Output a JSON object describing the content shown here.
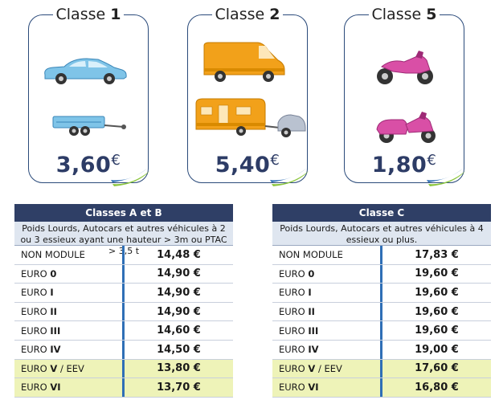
{
  "classes": [
    {
      "title_prefix": "Classe ",
      "title_number": "1",
      "price_main": "3,60",
      "price_currency": "€",
      "icons": [
        "car-icon",
        "trailer-icon"
      ]
    },
    {
      "title_prefix": "Classe ",
      "title_number": "2",
      "price_main": "5,40",
      "price_currency": "€",
      "icons": [
        "van-icon",
        "caravan-icon"
      ]
    },
    {
      "title_prefix": "Classe ",
      "title_number": "5",
      "price_main": "1,80",
      "price_currency": "€",
      "icons": [
        "motorcycle-icon",
        "motorcycle-sidecar-icon"
      ]
    }
  ],
  "table_ab": {
    "title": "Classes A et B",
    "description": "Poids Lourds, Autocars et autres véhicules à 2 ou 3 essieux ayant une hauteur > 3m ou PTAC > 3,5 t",
    "rows": [
      {
        "prefix": "NON MODULE",
        "suffix": "",
        "value": "14,48 €",
        "highlight": false
      },
      {
        "prefix": "EURO ",
        "suffix": "0",
        "value": "14,90 €",
        "highlight": false
      },
      {
        "prefix": "EURO ",
        "suffix": "I",
        "value": "14,90 €",
        "highlight": false
      },
      {
        "prefix": "EURO ",
        "suffix": "II",
        "value": "14,90 €",
        "highlight": false
      },
      {
        "prefix": "EURO ",
        "suffix": "III",
        "value": "14,60 €",
        "highlight": false
      },
      {
        "prefix": "EURO ",
        "suffix": "IV",
        "value": "14,50 €",
        "highlight": false
      },
      {
        "prefix": "EURO ",
        "suffix": "V",
        "extra": " / EEV",
        "value": "13,80 €",
        "highlight": true
      },
      {
        "prefix": "EURO ",
        "suffix": "VI",
        "value": "13,70 €",
        "highlight": true
      }
    ]
  },
  "table_c": {
    "title": "Classe C",
    "description": "Poids Lourds, Autocars et autres véhicules à 4 essieux ou plus.",
    "rows": [
      {
        "prefix": "NON MODULE",
        "suffix": "",
        "value": "17,83 €",
        "highlight": false
      },
      {
        "prefix": "EURO ",
        "suffix": "0",
        "value": "19,60 €",
        "highlight": false
      },
      {
        "prefix": "EURO ",
        "suffix": "I",
        "value": "19,60 €",
        "highlight": false
      },
      {
        "prefix": "EURO ",
        "suffix": "II",
        "value": "19,60 €",
        "highlight": false
      },
      {
        "prefix": "EURO ",
        "suffix": "III",
        "value": "19,60 €",
        "highlight": false
      },
      {
        "prefix": "EURO ",
        "suffix": "IV",
        "value": "19,00 €",
        "highlight": false
      },
      {
        "prefix": "EURO ",
        "suffix": "V",
        "extra": " / EEV",
        "value": "17,60 €",
        "highlight": true
      },
      {
        "prefix": "EURO ",
        "suffix": "VI",
        "value": "16,80 €",
        "highlight": true
      }
    ]
  },
  "colors": {
    "header": "#2f3f66",
    "description_bg": "#dfe6f0",
    "highlight_row": "#eef3b8",
    "separator": "#2f6fb6",
    "card_border": "#2a4a7a",
    "car": "#7fc4e8",
    "van": "#f2a11a",
    "motorcycle": "#d94fa6",
    "swoosh_green": "#8cc63f",
    "swoosh_blue": "#2f6fb6"
  }
}
